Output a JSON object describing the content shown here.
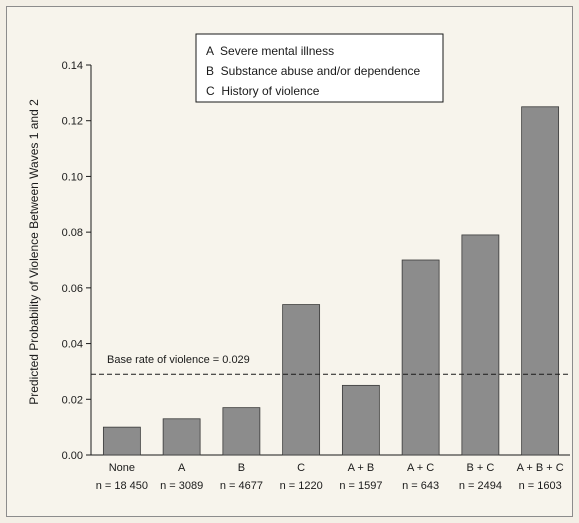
{
  "chart_data": {
    "type": "bar",
    "ylabel": "Predicted Probability of Violence Between Waves 1 and 2",
    "ylim": [
      0,
      0.14
    ],
    "yticks": [
      "0.00",
      "0.02",
      "0.04",
      "0.06",
      "0.08",
      "0.10",
      "0.12",
      "0.14"
    ],
    "categories": [
      "None",
      "A",
      "B",
      "C",
      "A + B",
      "A + C",
      "B + C",
      "A + B + C"
    ],
    "sample_sizes": [
      "n = 18 450",
      "n = 3089",
      "n = 4677",
      "n = 1220",
      "n = 1597",
      "n = 643",
      "n = 2494",
      "n = 1603"
    ],
    "values": [
      0.01,
      0.013,
      0.017,
      0.054,
      0.025,
      0.07,
      0.079,
      0.125
    ],
    "bar_color": "#8c8c8c",
    "reference_line": {
      "value": 0.029,
      "label": "Base rate of violence = 0.029"
    },
    "legend": [
      "A  Severe mental illness",
      "B  Substance abuse and/or dependence",
      "C  History of violence"
    ],
    "grid": false
  }
}
